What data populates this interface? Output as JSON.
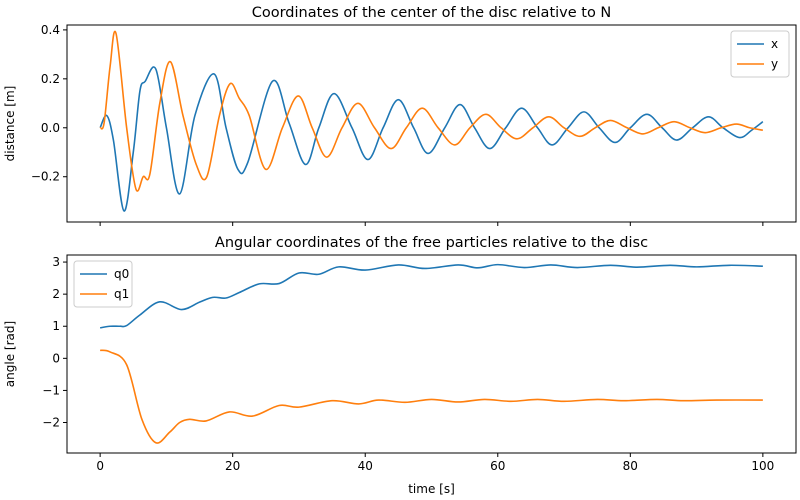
{
  "chart_data": [
    {
      "type": "line",
      "title": "Coordinates of the center of the disc relative to N",
      "xlabel": "",
      "ylabel": "distance [m]",
      "xlim": [
        -5,
        105
      ],
      "ylim": [
        -0.385,
        0.42
      ],
      "xticks": [
        0,
        20,
        40,
        60,
        80,
        100
      ],
      "xtick_labels_visible": false,
      "yticks": [
        -0.2,
        0.0,
        0.2,
        0.4
      ],
      "ytick_labels": [
        "−0.2",
        "0.0",
        "0.2",
        "0.4"
      ],
      "grid": false,
      "legend": "top-right",
      "series": [
        {
          "name": "x",
          "color": "#1f77b4",
          "x": [
            0,
            1,
            2,
            3.6,
            5,
            6,
            6.8,
            8.4,
            10,
            12,
            14.3,
            17.2,
            19,
            20.8,
            22.3,
            26,
            28.5,
            31,
            33,
            35.3,
            38,
            40.4,
            42.7,
            45,
            47.3,
            49.5,
            52,
            54.3,
            56.5,
            58.8,
            61.2,
            63.6,
            66,
            68.2,
            70.6,
            73,
            75.3,
            77.7,
            80,
            82.5,
            84.8,
            87,
            89.4,
            91.8,
            94,
            96.5,
            98.3,
            100
          ],
          "y": [
            0,
            0.05,
            -0.05,
            -0.34,
            -0.1,
            0.15,
            0.19,
            0.24,
            0.0,
            -0.27,
            0.05,
            0.22,
            0.0,
            -0.17,
            -0.14,
            0.19,
            0.02,
            -0.15,
            0.0,
            0.14,
            0.0,
            -0.13,
            0.0,
            0.115,
            0.0,
            -0.105,
            0.0,
            0.095,
            0.0,
            -0.085,
            0.0,
            0.08,
            0.0,
            -0.07,
            0.0,
            0.065,
            0.0,
            -0.06,
            0.0,
            0.055,
            0.0,
            -0.05,
            0.0,
            0.045,
            0.0,
            -0.04,
            -0.01,
            0.025
          ]
        },
        {
          "name": "y",
          "color": "#ff7f0e",
          "x": [
            0,
            0.6,
            1.5,
            2.4,
            4,
            5.4,
            6.5,
            7.5,
            9,
            10.6,
            12.5,
            14.5,
            16.1,
            18,
            19.6,
            21,
            22.5,
            25,
            27.5,
            29.9,
            32,
            34.2,
            36.5,
            38.9,
            41.4,
            43.9,
            46.2,
            48.6,
            51,
            53.5,
            55.8,
            58.2,
            60.5,
            62.9,
            65.3,
            67.7,
            70,
            72.4,
            74.7,
            77,
            79.5,
            81.9,
            84.2,
            86.6,
            89,
            91.3,
            93.7,
            96,
            98,
            100
          ],
          "y": [
            0,
            0.02,
            0.25,
            0.385,
            0.0,
            -0.25,
            -0.2,
            -0.19,
            0.1,
            0.27,
            0.05,
            -0.15,
            -0.2,
            0.05,
            0.18,
            0.12,
            0.05,
            -0.17,
            0.0,
            0.13,
            0.0,
            -0.12,
            0.0,
            0.1,
            0.0,
            -0.085,
            0.0,
            0.08,
            0.0,
            -0.07,
            0.0,
            0.055,
            0.0,
            -0.045,
            0.0,
            0.045,
            0.0,
            -0.035,
            0.0,
            0.03,
            0.0,
            -0.025,
            0.0,
            0.025,
            0.0,
            -0.02,
            0.0,
            0.015,
            0.0,
            -0.01
          ]
        }
      ]
    },
    {
      "type": "line",
      "title": "Angular coordinates of the free particles relative to the  disc",
      "xlabel": "time [s]",
      "ylabel": "angle [rad]",
      "xlim": [
        -5,
        105
      ],
      "ylim": [
        -2.95,
        3.22
      ],
      "xticks": [
        0,
        20,
        40,
        60,
        80,
        100
      ],
      "xtick_labels": [
        "0",
        "20",
        "40",
        "60",
        "80",
        "100"
      ],
      "yticks": [
        -2,
        -1,
        0,
        1,
        2,
        3
      ],
      "ytick_labels": [
        "−2",
        "−1",
        "0",
        "1",
        "2",
        "3"
      ],
      "grid": false,
      "legend": "top-left",
      "series": [
        {
          "name": "q0",
          "color": "#1f77b4",
          "x": [
            0,
            1.5,
            3,
            4,
            6,
            9,
            12.3,
            15,
            17,
            19,
            21,
            24,
            27,
            30,
            33,
            36,
            40,
            45,
            49,
            54,
            57,
            60,
            64,
            68,
            72,
            77,
            81,
            86,
            90,
            95,
            100
          ],
          "y": [
            0.95,
            1.0,
            1.0,
            1.02,
            1.35,
            1.76,
            1.52,
            1.75,
            1.9,
            1.88,
            2.05,
            2.32,
            2.33,
            2.66,
            2.62,
            2.85,
            2.75,
            2.91,
            2.8,
            2.91,
            2.82,
            2.92,
            2.83,
            2.91,
            2.83,
            2.9,
            2.84,
            2.9,
            2.85,
            2.9,
            2.87
          ]
        },
        {
          "name": "q1",
          "color": "#ff7f0e",
          "x": [
            0,
            1.5,
            4,
            6.3,
            8.4,
            10.5,
            12,
            13.5,
            16,
            19.5,
            23,
            27,
            30,
            35,
            39,
            42,
            46,
            50,
            54,
            58,
            62,
            66,
            70,
            75,
            79,
            84,
            88,
            93,
            100
          ],
          "y": [
            0.25,
            0.2,
            -0.2,
            -1.9,
            -2.63,
            -2.3,
            -2.0,
            -1.9,
            -1.95,
            -1.67,
            -1.8,
            -1.47,
            -1.52,
            -1.32,
            -1.42,
            -1.3,
            -1.37,
            -1.28,
            -1.36,
            -1.28,
            -1.34,
            -1.28,
            -1.34,
            -1.28,
            -1.32,
            -1.28,
            -1.32,
            -1.3,
            -1.3
          ]
        }
      ]
    }
  ]
}
